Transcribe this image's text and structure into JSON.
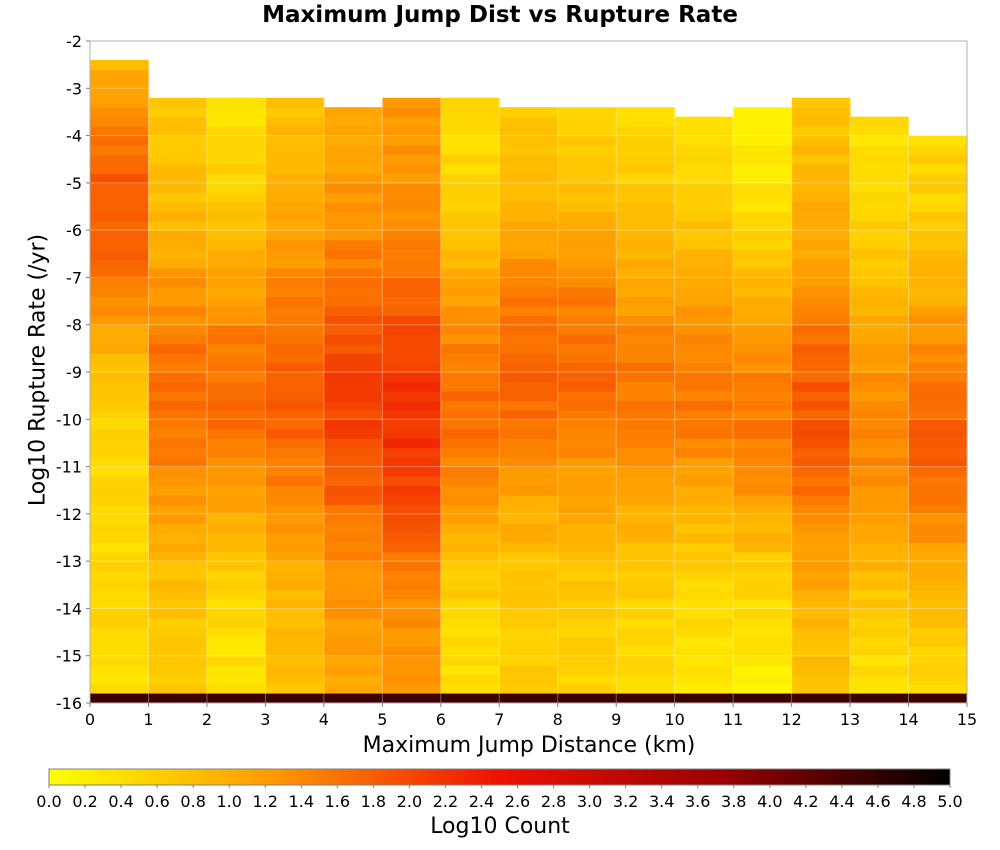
{
  "chart_data": {
    "type": "heatmap",
    "title": "Maximum Jump Dist vs Rupture Rate",
    "xlabel": "Maximum Jump Distance (km)",
    "ylabel": "Log10 Rupture Rate (/yr)",
    "colorbar_label": "Log10 Count",
    "xlim": [
      0,
      15
    ],
    "ylim": [
      -16,
      -2
    ],
    "x_ticks": [
      "0",
      "1",
      "2",
      "3",
      "4",
      "5",
      "6",
      "7",
      "8",
      "9",
      "10",
      "11",
      "12",
      "13",
      "14",
      "15"
    ],
    "y_ticks": [
      "-2",
      "-3",
      "-4",
      "-5",
      "-6",
      "-7",
      "-8",
      "-9",
      "-10",
      "-11",
      "-12",
      "-13",
      "-14",
      "-15",
      "-16"
    ],
    "colorbar_range": [
      0,
      5
    ],
    "colorbar_ticks": [
      "0.0",
      "0.2",
      "0.4",
      "0.6",
      "0.8",
      "1.0",
      "1.2",
      "1.4",
      "1.6",
      "1.8",
      "2.0",
      "2.2",
      "2.4",
      "2.6",
      "2.8",
      "3.0",
      "3.2",
      "3.4",
      "3.6",
      "3.8",
      "4.0",
      "4.2",
      "4.4",
      "4.6",
      "4.8",
      "5.0"
    ],
    "colormap": [
      "#ffff00",
      "#ff9900",
      "#ee1100",
      "#990000",
      "#000000"
    ],
    "x_bin_width": 1,
    "y_bin_height": 0.2,
    "x_bins": [
      0,
      1,
      2,
      3,
      4,
      5,
      6,
      7,
      8,
      9,
      10,
      11,
      12,
      13,
      14
    ],
    "rate_start": [
      -2.6,
      -3.4,
      -3.4,
      -3.4,
      -3.6,
      -3.4,
      -3.4,
      -3.6,
      -3.6,
      -3.6,
      -3.8,
      -3.6,
      -3.4,
      -3.8,
      -4.2
    ],
    "peak_rate": [
      -5.5,
      -9.5,
      -9.5,
      -9.5,
      -9.8,
      -10.0,
      -9.8,
      -9.0,
      -9.0,
      -9.5,
      -9.5,
      -10.0,
      -10.0,
      -10.5,
      -10.5
    ],
    "peak_log_count": [
      1.85,
      1.65,
      1.65,
      1.8,
      2.05,
      2.2,
      1.65,
      1.75,
      1.7,
      1.55,
      1.55,
      1.55,
      1.85,
      1.45,
      1.75
    ],
    "low_log_count": [
      0.45,
      0.6,
      0.35,
      0.75,
      1.1,
      1.2,
      0.35,
      0.6,
      0.55,
      0.45,
      0.3,
      0.2,
      0.75,
      0.35,
      0.45
    ],
    "bottom_row": {
      "y": -15.9,
      "log_count": 4.5,
      "x_range": [
        0,
        15
      ]
    },
    "grid": true,
    "colorbar_position": "bottom"
  }
}
